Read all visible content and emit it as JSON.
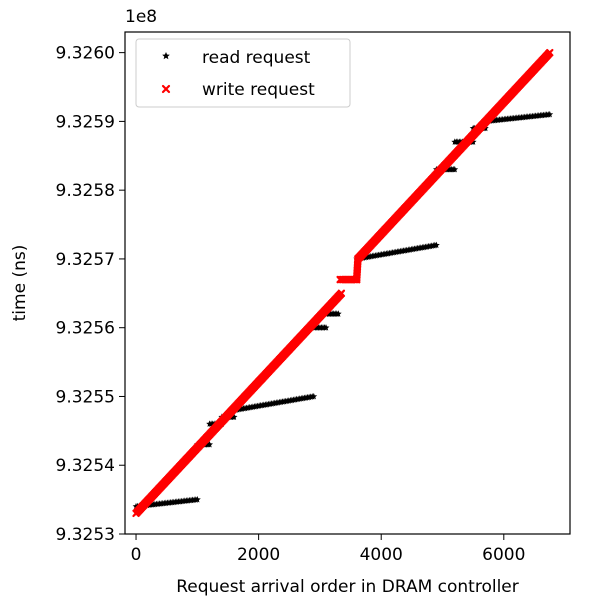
{
  "chart_data": {
    "type": "scatter",
    "xlabel": "Request arrival order in DRAM controller",
    "ylabel": "time (ns)",
    "offset_label": "1e8",
    "xlim": [
      -180,
      7080
    ],
    "ylim": [
      9.3253,
      9.32603
    ],
    "x_ticks": [
      0,
      2000,
      4000,
      6000
    ],
    "x_tick_labels": [
      "0",
      "2000",
      "4000",
      "6000"
    ],
    "y_ticks": [
      9.3253,
      9.3254,
      9.3255,
      9.3256,
      9.3257,
      9.3258,
      9.3259,
      9.326
    ],
    "y_tick_labels": [
      "9.3253",
      "9.3254",
      "9.3255",
      "9.3256",
      "9.3257",
      "9.3258",
      "9.3259",
      "9.3260"
    ],
    "grid": false,
    "legend_position": "top-left",
    "series": [
      {
        "name": "read request",
        "color": "#000000",
        "marker": "star",
        "segments": [
          {
            "x": [
              0,
              1000
            ],
            "y": [
              9.32534,
              9.32535
            ]
          },
          {
            "x": [
              1000,
              1200
            ],
            "y": [
              9.32543,
              9.32543
            ]
          },
          {
            "x": [
              1200,
              1400
            ],
            "y": [
              9.32546,
              9.32546
            ]
          },
          {
            "x": [
              1400,
              1600
            ],
            "y": [
              9.32547,
              9.32547
            ]
          },
          {
            "x": [
              1600,
              2900
            ],
            "y": [
              9.32548,
              9.3255
            ]
          },
          {
            "x": [
              2900,
              3100
            ],
            "y": [
              9.3256,
              9.3256
            ]
          },
          {
            "x": [
              3100,
              3300
            ],
            "y": [
              9.32562,
              9.32562
            ]
          },
          {
            "x": [
              3600,
              4900
            ],
            "y": [
              9.3257,
              9.32572
            ]
          },
          {
            "x": [
              4900,
              5200
            ],
            "y": [
              9.32583,
              9.32583
            ]
          },
          {
            "x": [
              5200,
              5500
            ],
            "y": [
              9.32587,
              9.32587
            ]
          },
          {
            "x": [
              5500,
              5700
            ],
            "y": [
              9.32589,
              9.32589
            ]
          },
          {
            "x": [
              5700,
              6750
            ],
            "y": [
              9.3259,
              9.32591
            ]
          }
        ]
      },
      {
        "name": "write request",
        "color": "#ff0000",
        "marker": "x",
        "segments": [
          {
            "x": [
              0,
              3350
            ],
            "y": [
              9.32533,
              9.32565
            ]
          },
          {
            "x": [
              3330,
              3600
            ],
            "y": [
              9.32567,
              9.32567
            ]
          },
          {
            "x": [
              3600,
              3620
            ],
            "y": [
              9.32567,
              9.3257
            ]
          },
          {
            "x": [
              3620,
              6750
            ],
            "y": [
              9.3257,
              9.326
            ]
          }
        ]
      }
    ]
  }
}
